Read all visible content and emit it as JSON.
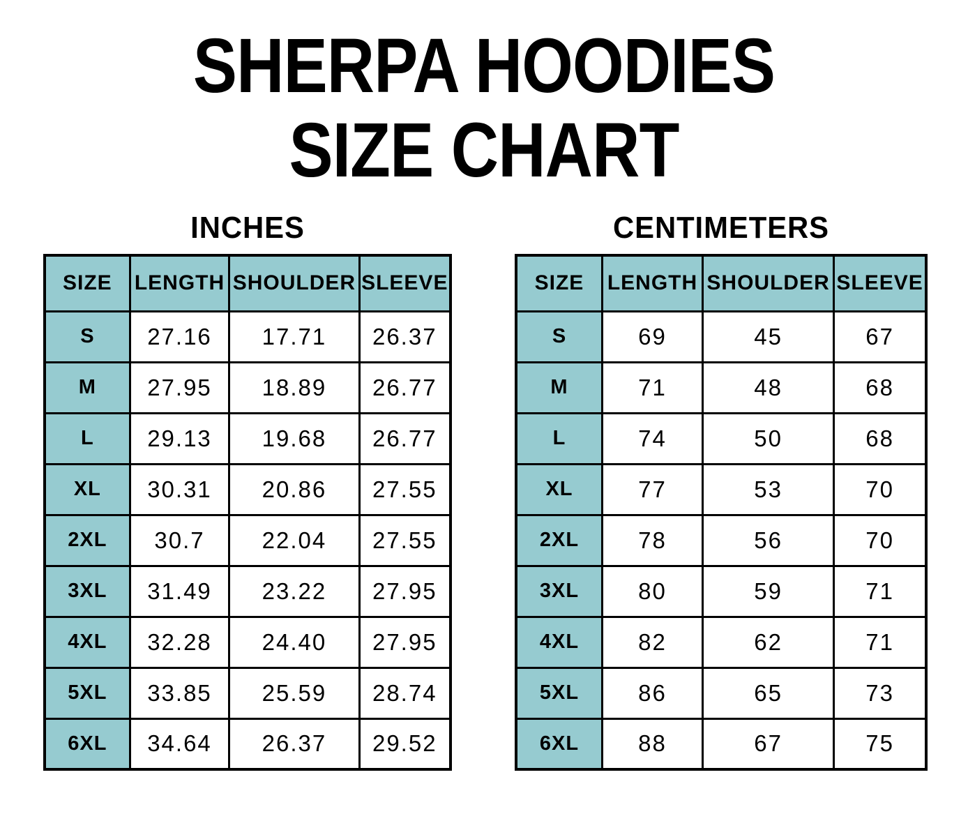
{
  "title": {
    "line1": "SHERPA HOODIES",
    "line2": "SIZE CHART"
  },
  "colors": {
    "header_bg": "#96CBD0",
    "border": "#000000",
    "text": "#000000",
    "page_bg": "#FFFFFF"
  },
  "chart_data": [
    {
      "type": "table",
      "title": "INCHES",
      "columns": [
        "SIZE",
        "LENGTH",
        "SHOULDER",
        "SLEEVE"
      ],
      "rows": [
        [
          "S",
          "27.16",
          "17.71",
          "26.37"
        ],
        [
          "M",
          "27.95",
          "18.89",
          "26.77"
        ],
        [
          "L",
          "29.13",
          "19.68",
          "26.77"
        ],
        [
          "XL",
          "30.31",
          "20.86",
          "27.55"
        ],
        [
          "2XL",
          "30.7",
          "22.04",
          "27.55"
        ],
        [
          "3XL",
          "31.49",
          "23.22",
          "27.95"
        ],
        [
          "4XL",
          "32.28",
          "24.40",
          "27.95"
        ],
        [
          "5XL",
          "33.85",
          "25.59",
          "28.74"
        ],
        [
          "6XL",
          "34.64",
          "26.37",
          "29.52"
        ]
      ]
    },
    {
      "type": "table",
      "title": "CENTIMETERS",
      "columns": [
        "SIZE",
        "LENGTH",
        "SHOULDER",
        "SLEEVE"
      ],
      "rows": [
        [
          "S",
          "69",
          "45",
          "67"
        ],
        [
          "M",
          "71",
          "48",
          "68"
        ],
        [
          "L",
          "74",
          "50",
          "68"
        ],
        [
          "XL",
          "77",
          "53",
          "70"
        ],
        [
          "2XL",
          "78",
          "56",
          "70"
        ],
        [
          "3XL",
          "80",
          "59",
          "71"
        ],
        [
          "4XL",
          "82",
          "62",
          "71"
        ],
        [
          "5XL",
          "86",
          "65",
          "73"
        ],
        [
          "6XL",
          "88",
          "67",
          "75"
        ]
      ]
    }
  ]
}
